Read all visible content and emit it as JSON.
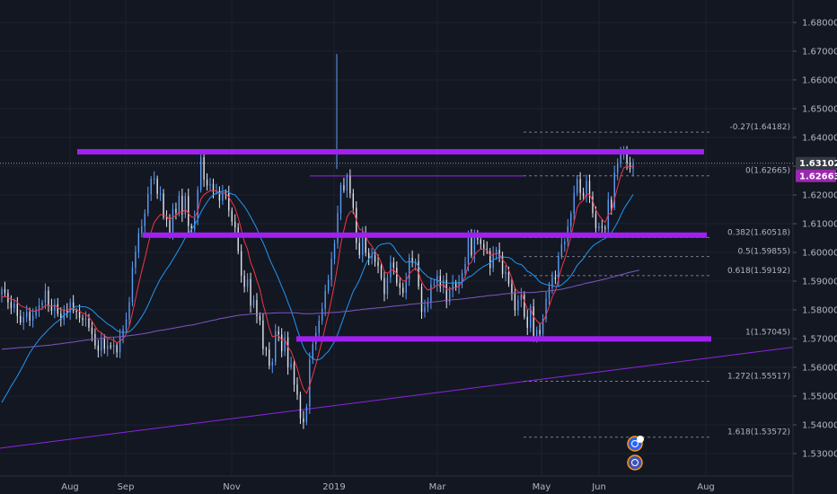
{
  "chart_data": {
    "type": "candlestick",
    "y_axis": {
      "ticks": [
        "1.68000",
        "1.67000",
        "1.66000",
        "1.65000",
        "1.64000",
        "1.63000",
        "1.62000",
        "1.61000",
        "1.60000",
        "1.59000",
        "1.58000",
        "1.57000",
        "1.56000",
        "1.55000",
        "1.54000",
        "1.53000"
      ],
      "range": [
        1.5222,
        1.6878
      ],
      "position": "right"
    },
    "x_axis": {
      "ticks": [
        "Aug",
        "Sep",
        "Nov",
        "2019",
        "Mar",
        "May",
        "Jun",
        "Aug"
      ]
    },
    "price_tags": [
      {
        "label": "1.63102",
        "value": 1.63102,
        "style": "current"
      },
      {
        "label": "1.62663",
        "value": 1.62663,
        "style": "highlight"
      }
    ],
    "fibonacci": [
      {
        "label": "-0.27(1.64182)",
        "value": 1.64182
      },
      {
        "label": "0(1.62665)",
        "value": 1.62665
      },
      {
        "label": "0.382(1.60518)",
        "value": 1.60518
      },
      {
        "label": "0.5(1.59855)",
        "value": 1.59855
      },
      {
        "label": "0.618(1.59192)",
        "value": 1.59192
      },
      {
        "label": "1(1.57045)",
        "value": 1.57045
      },
      {
        "label": "1.272(1.55517)",
        "value": 1.55517
      },
      {
        "label": "1.618(1.53572)",
        "value": 1.53572
      }
    ],
    "horizontal_zones": [
      {
        "value": 1.635,
        "color": "#a020f0"
      },
      {
        "value": 1.606,
        "color": "#a020f0"
      },
      {
        "value": 1.5699,
        "color": "#a020f0"
      }
    ],
    "trendline": {
      "from": [
        0,
        1.5319
      ],
      "to": [
        1.0,
        1.567
      ],
      "color": "#8e24e0"
    },
    "series": [
      {
        "kind": "close",
        "color": "#2962ff",
        "values": [
          1.5872,
          1.5859,
          1.5826,
          1.5806,
          1.5822,
          1.5779,
          1.5756,
          1.5775,
          1.5793,
          1.5763,
          1.578,
          1.5801,
          1.5815,
          1.5825,
          1.5867,
          1.5815,
          1.5797,
          1.582,
          1.5787,
          1.5766,
          1.5799,
          1.5791,
          1.5826,
          1.5797,
          1.5793,
          1.5772,
          1.5765,
          1.577,
          1.5738,
          1.5716,
          1.5676,
          1.5658,
          1.5699,
          1.5664,
          1.5676,
          1.5671,
          1.5677,
          1.5652,
          1.5708,
          1.5733,
          1.5767,
          1.5827,
          1.5947,
          1.6002,
          1.6067,
          1.6091,
          1.6136,
          1.6203,
          1.6256,
          1.6256,
          1.6204,
          1.6205,
          1.6123,
          1.6114,
          1.6065,
          1.6151,
          1.6138,
          1.6197,
          1.6132,
          1.6196,
          1.6092,
          1.6079,
          1.612,
          1.6217,
          1.6331,
          1.6253,
          1.6233,
          1.6238,
          1.6212,
          1.6215,
          1.618,
          1.6209,
          1.6206,
          1.6146,
          1.6107,
          1.6087,
          1.6004,
          1.5919,
          1.588,
          1.5907,
          1.5815,
          1.5834,
          1.5779,
          1.5763,
          1.5664,
          1.5662,
          1.5606,
          1.5619,
          1.5726,
          1.5714,
          1.5656,
          1.5705,
          1.56,
          1.5614,
          1.554,
          1.5505,
          1.5423,
          1.541,
          1.5464,
          1.5627,
          1.5681,
          1.572,
          1.5763,
          1.5804,
          1.5866,
          1.5905,
          1.5978,
          1.6031,
          1.6137,
          1.6234,
          1.6216,
          1.6264,
          1.6205,
          1.6155,
          1.6033,
          1.5991,
          1.6069,
          1.5999,
          1.5979,
          1.599,
          1.5967,
          1.5953,
          1.5911,
          1.5855,
          1.5913,
          1.5965,
          1.5947,
          1.5893,
          1.5877,
          1.5859,
          1.5906,
          1.5981,
          1.5963,
          1.5969,
          1.5881,
          1.5793,
          1.581,
          1.5828,
          1.5889,
          1.5889,
          1.5918,
          1.5878,
          1.5904,
          1.5829,
          1.5869,
          1.5896,
          1.5879,
          1.5896,
          1.5928,
          1.596,
          1.6059,
          1.5989,
          1.6059,
          1.6045,
          1.6029,
          1.6013,
          1.6005,
          1.5946,
          1.5996,
          1.6009,
          1.5988,
          1.5925,
          1.5932,
          1.5891,
          1.5857,
          1.5798,
          1.5834,
          1.5852,
          1.5776,
          1.5738,
          1.5812,
          1.571,
          1.573,
          1.5716,
          1.5769,
          1.584,
          1.5877,
          1.5914,
          1.5906,
          1.5986,
          1.6028,
          1.6038,
          1.609,
          1.6135,
          1.6207,
          1.6255,
          1.6207,
          1.6196,
          1.6249,
          1.6194,
          1.6136,
          1.6084,
          1.609,
          1.6086,
          1.6082,
          1.6184,
          1.6156,
          1.6277,
          1.6311,
          1.6344,
          1.635,
          1.631,
          1.629,
          1.631
        ]
      },
      {
        "kind": "moving-average",
        "color": "#f23645",
        "values": [
          1.5845,
          1.5846,
          1.5843,
          1.5837,
          1.5835,
          1.5826,
          1.5815,
          1.581,
          1.5807,
          1.5799,
          1.5795,
          1.5796,
          1.58,
          1.5805,
          1.5816,
          1.5816,
          1.5813,
          1.5815,
          1.5809,
          1.58,
          1.58,
          1.5798,
          1.5805,
          1.5803,
          1.5801,
          1.5795,
          1.5789,
          1.5785,
          1.5774,
          1.5761,
          1.5743,
          1.5726,
          1.5721,
          1.571,
          1.5704,
          1.5698,
          1.5694,
          1.5686,
          1.569,
          1.57,
          1.5716,
          1.5743,
          1.5789,
          1.5838,
          1.589,
          1.5935,
          1.5978,
          1.6026,
          1.6071,
          1.6104,
          1.6119,
          1.6132,
          1.6129,
          1.6126,
          1.6114,
          1.6123,
          1.6127,
          1.6141,
          1.6139,
          1.615,
          1.6136,
          1.6123,
          1.6122,
          1.6143,
          1.6185,
          1.6201,
          1.6208,
          1.6214,
          1.6213,
          1.6214,
          1.6205,
          1.6206,
          1.6206,
          1.6192,
          1.6174,
          1.6155,
          1.6121,
          1.6079,
          1.6038,
          1.6011,
          1.5966,
          1.5939,
          1.5903,
          1.5872,
          1.582,
          1.5782,
          1.5737,
          1.5706,
          1.571,
          1.5711,
          1.5695,
          1.5698,
          1.5672,
          1.5656,
          1.5627,
          1.5597,
          1.5556,
          1.5525,
          1.551,
          1.5538,
          1.5573,
          1.5611,
          1.5651,
          1.5693,
          1.5741,
          1.5784,
          1.5838,
          1.589,
          1.5956,
          1.603,
          1.6077,
          1.6123,
          1.6141,
          1.6144,
          1.6113,
          1.608,
          1.6077,
          1.6057,
          1.6035,
          1.6022,
          1.6004,
          1.5987,
          1.5964,
          1.5933,
          1.5927,
          1.5936,
          1.594,
          1.5926,
          1.5914,
          1.59,
          1.5902,
          1.5925,
          1.5936,
          1.5946,
          1.593,
          1.5898,
          1.588,
          1.5869,
          1.5873,
          1.5877,
          1.5888,
          1.5884,
          1.589,
          1.5872,
          1.5871,
          1.5877,
          1.5877,
          1.5883,
          1.5897,
          1.5916,
          1.5956,
          1.5966,
          1.5991,
          1.6004,
          1.6011,
          1.6011,
          1.6009,
          1.599,
          1.5992,
          1.5997,
          1.5994,
          1.5974,
          1.5962,
          1.5938,
          1.5911,
          1.5875,
          1.5863,
          1.5859,
          1.5831,
          1.5801,
          1.5804,
          1.5776,
          1.5763,
          1.5751,
          1.5757,
          1.5782,
          1.5812,
          1.5846,
          1.5866,
          1.5906,
          1.5946,
          1.5977,
          1.6015,
          1.6055,
          1.6106,
          1.6156,
          1.6173,
          1.6181,
          1.6204,
          1.6201,
          1.618,
          1.6148,
          1.6129,
          1.6115,
          1.6104,
          1.6131,
          1.6139,
          1.6185,
          1.6227,
          1.6266,
          1.6294,
          1.6299,
          1.6296,
          1.6301
        ]
      },
      {
        "kind": "moving-average",
        "color": "#2196f3",
        "values": [
          1.5478,
          1.5497,
          1.5515,
          1.5535,
          1.5552,
          1.5569,
          1.5589,
          1.5609,
          1.5631,
          1.5651,
          1.5667,
          1.5682,
          1.5697,
          1.5709,
          1.572,
          1.5732,
          1.5742,
          1.5753,
          1.576,
          1.577,
          1.5782,
          1.5788,
          1.5799,
          1.5806,
          1.5813,
          1.5812,
          1.5811,
          1.581,
          1.5806,
          1.5799,
          1.5789,
          1.5778,
          1.577,
          1.576,
          1.5751,
          1.5745,
          1.5737,
          1.5728,
          1.5723,
          1.5722,
          1.5721,
          1.5724,
          1.5733,
          1.5745,
          1.576,
          1.5776,
          1.5794,
          1.5816,
          1.584,
          1.5865,
          1.5887,
          1.5908,
          1.5925,
          1.5942,
          1.5957,
          1.5975,
          1.5993,
          1.6012,
          1.6031,
          1.6051,
          1.6066,
          1.608,
          1.6096,
          1.6115,
          1.6139,
          1.6158,
          1.6175,
          1.619,
          1.62,
          1.6206,
          1.6208,
          1.6213,
          1.6213,
          1.6208,
          1.6203,
          1.62,
          1.6187,
          1.6173,
          1.616,
          1.6143,
          1.6124,
          1.6104,
          1.6083,
          1.6056,
          1.6034,
          1.6008,
          1.598,
          1.5955,
          1.5933,
          1.5908,
          1.5881,
          1.5857,
          1.5827,
          1.5799,
          1.5767,
          1.5731,
          1.5699,
          1.567,
          1.565,
          1.564,
          1.5632,
          1.5625,
          1.5627,
          1.5633,
          1.5646,
          1.5655,
          1.5673,
          1.569,
          1.5715,
          1.5746,
          1.5775,
          1.5807,
          1.5836,
          1.5864,
          1.5883,
          1.5904,
          1.5931,
          1.5958,
          1.5977,
          1.599,
          1.6007,
          1.6022,
          1.6028,
          1.603,
          1.6032,
          1.6031,
          1.602,
          1.6002,
          1.5989,
          1.5975,
          1.5965,
          1.5968,
          1.5966,
          1.5965,
          1.5952,
          1.5935,
          1.5925,
          1.5915,
          1.591,
          1.5906,
          1.5903,
          1.5898,
          1.5896,
          1.5893,
          1.5893,
          1.5894,
          1.5894,
          1.5894,
          1.5897,
          1.5905,
          1.5914,
          1.5918,
          1.5927,
          1.5936,
          1.5944,
          1.5952,
          1.5957,
          1.5963,
          1.5974,
          1.5979,
          1.5984,
          1.5984,
          1.5983,
          1.5982,
          1.5977,
          1.5966,
          1.596,
          1.5958,
          1.5948,
          1.5934,
          1.5929,
          1.592,
          1.591,
          1.5897,
          1.5892,
          1.5888,
          1.5886,
          1.5886,
          1.5881,
          1.5882,
          1.5887,
          1.5896,
          1.5906,
          1.5918,
          1.5936,
          1.5955,
          1.5967,
          1.5978,
          1.5996,
          1.6009,
          1.6022,
          1.603,
          1.6036,
          1.6044,
          1.6048,
          1.6059,
          1.6068,
          1.6086,
          1.6105,
          1.6128,
          1.6151,
          1.6168,
          1.6184,
          1.6202
        ]
      },
      {
        "kind": "moving-average",
        "color": "#7e57c2",
        "values": [
          1.5663,
          1.5664,
          1.5665,
          1.5666,
          1.5667,
          1.5668,
          1.5669,
          1.5669,
          1.567,
          1.5671,
          1.5672,
          1.5673,
          1.5674,
          1.5675,
          1.5676,
          1.5677,
          1.5678,
          1.568,
          1.5681,
          1.5682,
          1.5684,
          1.5685,
          1.5687,
          1.5688,
          1.569,
          1.5692,
          1.5693,
          1.5695,
          1.5696,
          1.5698,
          1.5699,
          1.57,
          1.5701,
          1.5702,
          1.5704,
          1.5705,
          1.5705,
          1.5706,
          1.5707,
          1.5708,
          1.5709,
          1.571,
          1.5712,
          1.5713,
          1.5715,
          1.5716,
          1.5718,
          1.572,
          1.5722,
          1.5725,
          1.5727,
          1.5729,
          1.573,
          1.5732,
          1.5734,
          1.5736,
          1.5738,
          1.574,
          1.5742,
          1.5744,
          1.5746,
          1.5747,
          1.5749,
          1.5752,
          1.5754,
          1.5757,
          1.5759,
          1.5762,
          1.5764,
          1.5766,
          1.5769,
          1.5771,
          1.5773,
          1.5775,
          1.5777,
          1.5779,
          1.5781,
          1.5782,
          1.5783,
          1.5784,
          1.5785,
          1.5786,
          1.5786,
          1.5787,
          1.5788,
          1.5788,
          1.5788,
          1.5789,
          1.5789,
          1.579,
          1.579,
          1.579,
          1.579,
          1.579,
          1.579,
          1.5789,
          1.5788,
          1.5787,
          1.5787,
          1.5787,
          1.5787,
          1.5788,
          1.5788,
          1.5789,
          1.5789,
          1.579,
          1.5791,
          1.5791,
          1.5792,
          1.5793,
          1.5794,
          1.5795,
          1.5796,
          1.5798,
          1.5799,
          1.58,
          1.5802,
          1.5803,
          1.5804,
          1.5805,
          1.5806,
          1.5807,
          1.5808,
          1.5809,
          1.581,
          1.5812,
          1.5813,
          1.5814,
          1.5815,
          1.5816,
          1.5817,
          1.5819,
          1.582,
          1.5821,
          1.5822,
          1.5823,
          1.5824,
          1.5825,
          1.5827,
          1.5828,
          1.5829,
          1.583,
          1.5832,
          1.5833,
          1.5834,
          1.5835,
          1.5836,
          1.5837,
          1.5838,
          1.5839,
          1.5841,
          1.5842,
          1.5843,
          1.5845,
          1.5846,
          1.5847,
          1.5849,
          1.585,
          1.5851,
          1.5852,
          1.5853,
          1.5855,
          1.5856,
          1.5857,
          1.5858,
          1.5859,
          1.5859,
          1.586,
          1.586,
          1.586,
          1.586,
          1.5861,
          1.5862,
          1.5863,
          1.5864,
          1.5865,
          1.5866,
          1.5867,
          1.5869,
          1.587,
          1.5872,
          1.5874,
          1.5877,
          1.5879,
          1.5882,
          1.5885,
          1.5887,
          1.589,
          1.5893,
          1.5895,
          1.5897,
          1.59,
          1.5902,
          1.5905,
          1.5907,
          1.591,
          1.5913,
          1.5916,
          1.5919,
          1.5922,
          1.5925,
          1.5928,
          1.5931,
          1.5933,
          1.5936,
          1.5938
        ]
      }
    ],
    "colors": {
      "background": "#131722",
      "up": "#5b9cf6",
      "down": "#e0e3eb",
      "grid": "#1e222d",
      "fib": "#787b86",
      "zone": "#a020f0",
      "current_tag": "#363a45",
      "highlight_tag": "#9c27b0"
    },
    "icons": [
      "news-icon",
      "earnings-icon"
    ]
  }
}
